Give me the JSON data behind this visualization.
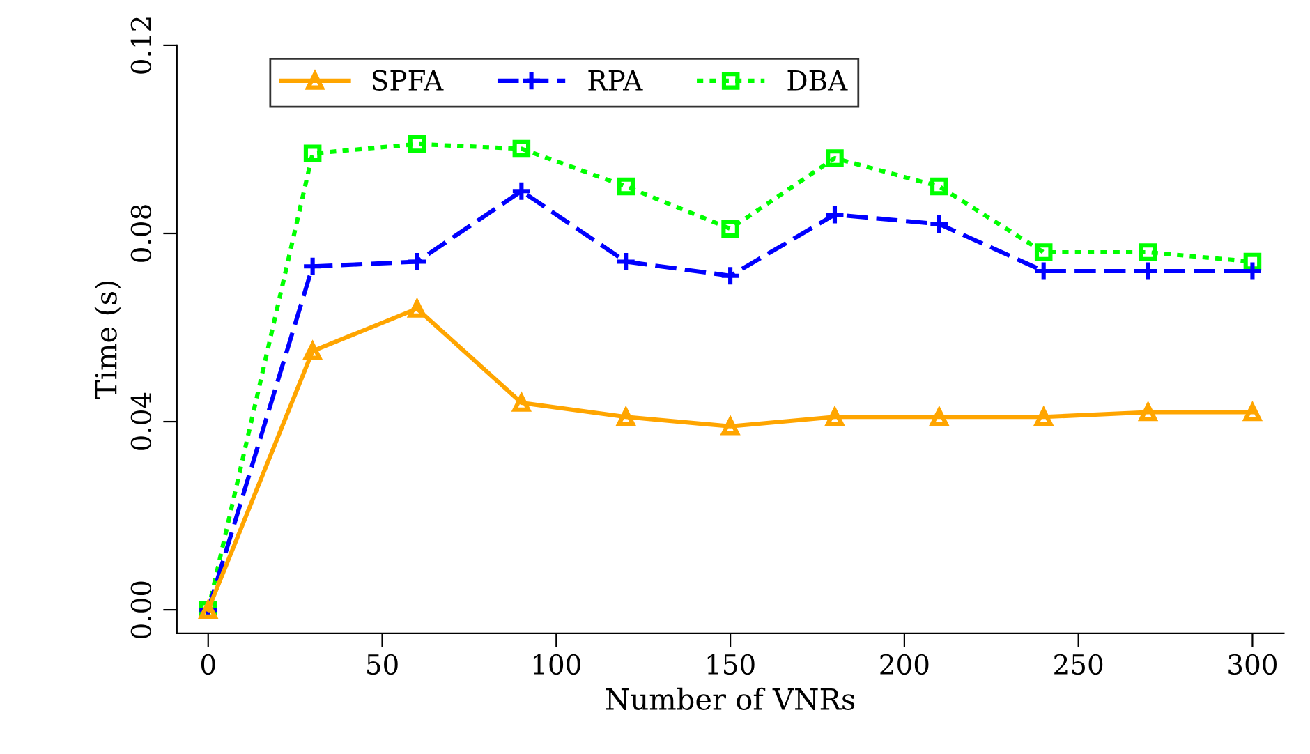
{
  "chart_data": {
    "type": "line",
    "xlabel": "Number of VNRs",
    "ylabel": "Time (s)",
    "x": [
      0,
      30,
      60,
      90,
      120,
      150,
      180,
      210,
      240,
      270,
      300
    ],
    "xlim": [
      -9,
      309
    ],
    "xticks": [
      0,
      50,
      100,
      150,
      200,
      250,
      300
    ],
    "ylim": [
      -0.005,
      0.12
    ],
    "yticks": [
      {
        "value": 0,
        "label": "0.00"
      },
      0.04,
      0.08,
      0.12
    ],
    "grid": false,
    "legend": "top",
    "series": [
      {
        "name": "SPFA",
        "color": "#ffa500",
        "marker": "triangle",
        "line_style": "solid",
        "values": [
          0,
          0.055,
          0.064,
          0.044,
          0.041,
          0.039,
          0.041,
          0.041,
          0.041,
          0.042,
          0.042
        ]
      },
      {
        "name": "RPA",
        "color": "#0000ff",
        "marker": "cross",
        "line_style": "dashed",
        "values": [
          0,
          0.073,
          0.074,
          0.089,
          0.074,
          0.071,
          0.084,
          0.082,
          0.072,
          0.072,
          0.072
        ]
      },
      {
        "name": "DBA",
        "color": "#00ff00",
        "marker": "square",
        "line_style": "dotted",
        "values": [
          0,
          0.097,
          0.099,
          0.098,
          0.09,
          0.081,
          0.096,
          0.09,
          0.076,
          0.076,
          0.074
        ]
      }
    ]
  }
}
